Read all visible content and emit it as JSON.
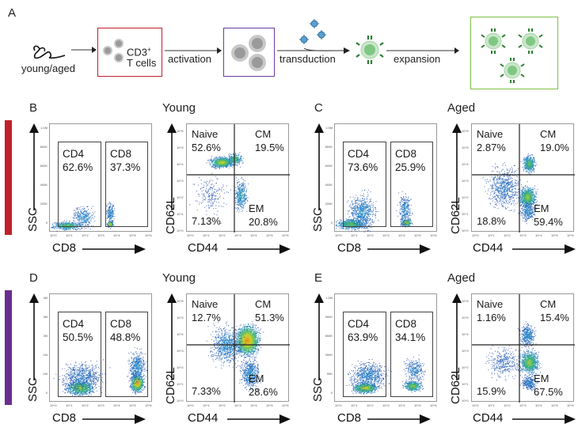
{
  "figure": {
    "panel_a": {
      "letter": "A",
      "source_label": "young/aged",
      "cell_label_line1": "CD3",
      "cell_label_sup": "+",
      "cell_label_line2": "T cells",
      "steps": [
        "activation",
        "transduction",
        "expansion"
      ],
      "box_colors": {
        "cd3": "#c0202c",
        "activated": "#6a3d9a",
        "expanded": "#7cc242"
      }
    },
    "rows": [
      {
        "bar_color": "#c0202c",
        "panels": [
          {
            "letter": "B",
            "condition": "Young",
            "ssc_plot": {
              "xlabel": "CD8",
              "ylabel": "SSC",
              "yticks": [
                "1.0M",
                "800K",
                "600K",
                "400K",
                "200K",
                "0"
              ],
              "xticks": [
                "10^0",
                "10^1",
                "10^2",
                "10^3",
                "10^4",
                "10^5",
                "10^6"
              ],
              "gates": [
                {
                  "name": "CD4",
                  "percent": "62.6%"
                },
                {
                  "name": "CD8",
                  "percent": "37.3%"
                }
              ]
            },
            "quad_plot": {
              "xlabel": "CD44",
              "ylabel": "CD62L",
              "ticks": [
                "10^0",
                "10^1",
                "10^2",
                "10^3",
                "10^4",
                "10^5",
                "10^6"
              ],
              "quadrants": {
                "naive": {
                  "name": "Naive",
                  "percent": "52.6%"
                },
                "cm": {
                  "name": "CM",
                  "percent": "19.5%"
                },
                "em": {
                  "name": "EM",
                  "percent": "20.8%"
                },
                "dn": {
                  "percent": "7.13%"
                }
              }
            }
          },
          {
            "letter": "C",
            "condition": "Aged",
            "ssc_plot": {
              "xlabel": "CD8",
              "ylabel": "SSC",
              "yticks": [
                "1.0M",
                "800K",
                "600K",
                "400K",
                "200K",
                "0"
              ],
              "xticks": [
                "10^0",
                "10^1",
                "10^2",
                "10^3",
                "10^4",
                "10^5",
                "10^6"
              ],
              "gates": [
                {
                  "name": "CD4",
                  "percent": "73.6%"
                },
                {
                  "name": "CD8",
                  "percent": "25.9%"
                }
              ]
            },
            "quad_plot": {
              "xlabel": "CD44",
              "ylabel": "CD62L",
              "ticks": [
                "10^0",
                "10^1",
                "10^2",
                "10^3",
                "10^4",
                "10^5",
                "10^6"
              ],
              "quadrants": {
                "naive": {
                  "name": "Naive",
                  "percent": "2.87%"
                },
                "cm": {
                  "name": "CM",
                  "percent": "19.0%"
                },
                "em": {
                  "name": "EM",
                  "percent": "59.4%"
                },
                "dn": {
                  "percent": "18.8%"
                }
              }
            }
          }
        ]
      },
      {
        "bar_color": "#6a2d91",
        "panels": [
          {
            "letter": "D",
            "condition": "Young",
            "ssc_plot": {
              "xlabel": "CD8",
              "ylabel": "SSC",
              "yticks": [
                "4M",
                "3M",
                "2M",
                "1M",
                "1M",
                "0"
              ],
              "xticks": [
                "10^0",
                "10^1",
                "10^2",
                "10^3",
                "10^4",
                "10^5",
                "10^6"
              ],
              "gates": [
                {
                  "name": "CD4",
                  "percent": "50.5%"
                },
                {
                  "name": "CD8",
                  "percent": "48.8%"
                }
              ]
            },
            "quad_plot": {
              "xlabel": "CD44",
              "ylabel": "CD62L",
              "ticks": [
                "10^0",
                "10^1",
                "10^2",
                "10^3",
                "10^4",
                "10^5",
                "10^6"
              ],
              "quadrants": {
                "naive": {
                  "name": "Naive",
                  "percent": "12.7%"
                },
                "cm": {
                  "name": "CM",
                  "percent": "51.3%"
                },
                "em": {
                  "name": "EM",
                  "percent": "28.6%"
                },
                "dn": {
                  "percent": "7.33%"
                }
              }
            }
          },
          {
            "letter": "E",
            "condition": "Aged",
            "ssc_plot": {
              "xlabel": "CD8",
              "ylabel": "SSC",
              "yticks": [
                "1.2M",
                "950K",
                "650K",
                "350K",
                "50K",
                "0"
              ],
              "xticks": [
                "10^0",
                "10^1",
                "10^2",
                "10^3",
                "10^4",
                "10^5",
                "10^6"
              ],
              "gates": [
                {
                  "name": "CD4",
                  "percent": "63.9%"
                },
                {
                  "name": "CD8",
                  "percent": "34.1%"
                }
              ]
            },
            "quad_plot": {
              "xlabel": "CD44",
              "ylabel": "CD62L",
              "ticks": [
                "10^0",
                "10^1",
                "10^2",
                "10^3",
                "10^4",
                "10^5",
                "10^6"
              ],
              "quadrants": {
                "naive": {
                  "name": "Naive",
                  "percent": "1.16%"
                },
                "cm": {
                  "name": "CM",
                  "percent": "15.4%"
                },
                "em": {
                  "name": "EM",
                  "percent": "67.5%"
                },
                "dn": {
                  "percent": "15.9%"
                }
              }
            }
          }
        ]
      }
    ]
  },
  "chart_data": [
    {
      "type": "scatter",
      "panel": "B",
      "title": "Young",
      "xlabel": "CD8",
      "ylabel": "SSC",
      "gates": {
        "CD4": 62.6,
        "CD8": 37.3
      }
    },
    {
      "type": "scatter",
      "panel": "B",
      "title": "Young",
      "xlabel": "CD44",
      "ylabel": "CD62L",
      "quadrants": {
        "Naive": 52.6,
        "CM": 19.5,
        "EM": 20.8,
        "CD44lo CD62Llo": 7.13
      }
    },
    {
      "type": "scatter",
      "panel": "C",
      "title": "Aged",
      "xlabel": "CD8",
      "ylabel": "SSC",
      "gates": {
        "CD4": 73.6,
        "CD8": 25.9
      }
    },
    {
      "type": "scatter",
      "panel": "C",
      "title": "Aged",
      "xlabel": "CD44",
      "ylabel": "CD62L",
      "quadrants": {
        "Naive": 2.87,
        "CM": 19.0,
        "EM": 59.4,
        "CD44lo CD62Llo": 18.8
      }
    },
    {
      "type": "scatter",
      "panel": "D",
      "title": "Young",
      "xlabel": "CD8",
      "ylabel": "SSC",
      "gates": {
        "CD4": 50.5,
        "CD8": 48.8
      }
    },
    {
      "type": "scatter",
      "panel": "D",
      "title": "Young",
      "xlabel": "CD44",
      "ylabel": "CD62L",
      "quadrants": {
        "Naive": 12.7,
        "CM": 51.3,
        "EM": 28.6,
        "CD44lo CD62Llo": 7.33
      }
    },
    {
      "type": "scatter",
      "panel": "E",
      "title": "Aged",
      "xlabel": "CD8",
      "ylabel": "SSC",
      "gates": {
        "CD4": 63.9,
        "CD8": 34.1
      }
    },
    {
      "type": "scatter",
      "panel": "E",
      "title": "Aged",
      "xlabel": "CD44",
      "ylabel": "CD62L",
      "quadrants": {
        "Naive": 1.16,
        "CM": 15.4,
        "EM": 67.5,
        "CD44lo CD62Llo": 15.9
      }
    }
  ]
}
